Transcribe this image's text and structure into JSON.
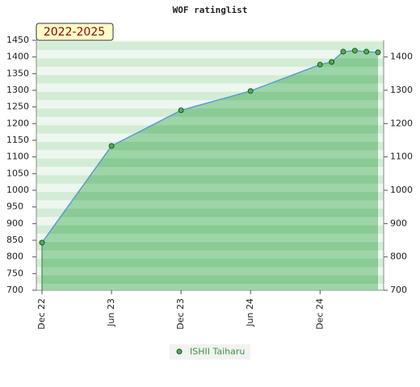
{
  "chart_data": {
    "type": "area",
    "title": "WOF ratinglist",
    "badge": "2022-2025",
    "x": [
      "2022-12",
      "2023-06",
      "2023-12",
      "2024-06",
      "2024-12",
      "2025-01",
      "2025-02",
      "2025-03",
      "2025-04",
      "2025-05"
    ],
    "series": [
      {
        "name": "ISHII Taiharu",
        "color": "#4caf50",
        "values": [
          843,
          1133,
          1240,
          1298,
          1377,
          1385,
          1416,
          1419,
          1416,
          1414
        ]
      }
    ],
    "xlim": [
      "2022-12",
      "2025-05"
    ],
    "xticks": [
      {
        "value": "2022-12",
        "label": "Dec 22"
      },
      {
        "value": "2023-06",
        "label": "Jun 23"
      },
      {
        "value": "2023-12",
        "label": "Dec 23"
      },
      {
        "value": "2024-06",
        "label": "Jun 24"
      },
      {
        "value": "2024-12",
        "label": "Dec 24"
      }
    ],
    "ylim": [
      700,
      1450
    ],
    "yticks": [
      700,
      750,
      800,
      850,
      900,
      950,
      1000,
      1050,
      1100,
      1150,
      1200,
      1250,
      1300,
      1350,
      1400,
      1450
    ],
    "y2lim": [
      700,
      1450
    ],
    "y2ticks": [
      700,
      800,
      900,
      1000,
      1100,
      1200,
      1300,
      1400
    ]
  }
}
